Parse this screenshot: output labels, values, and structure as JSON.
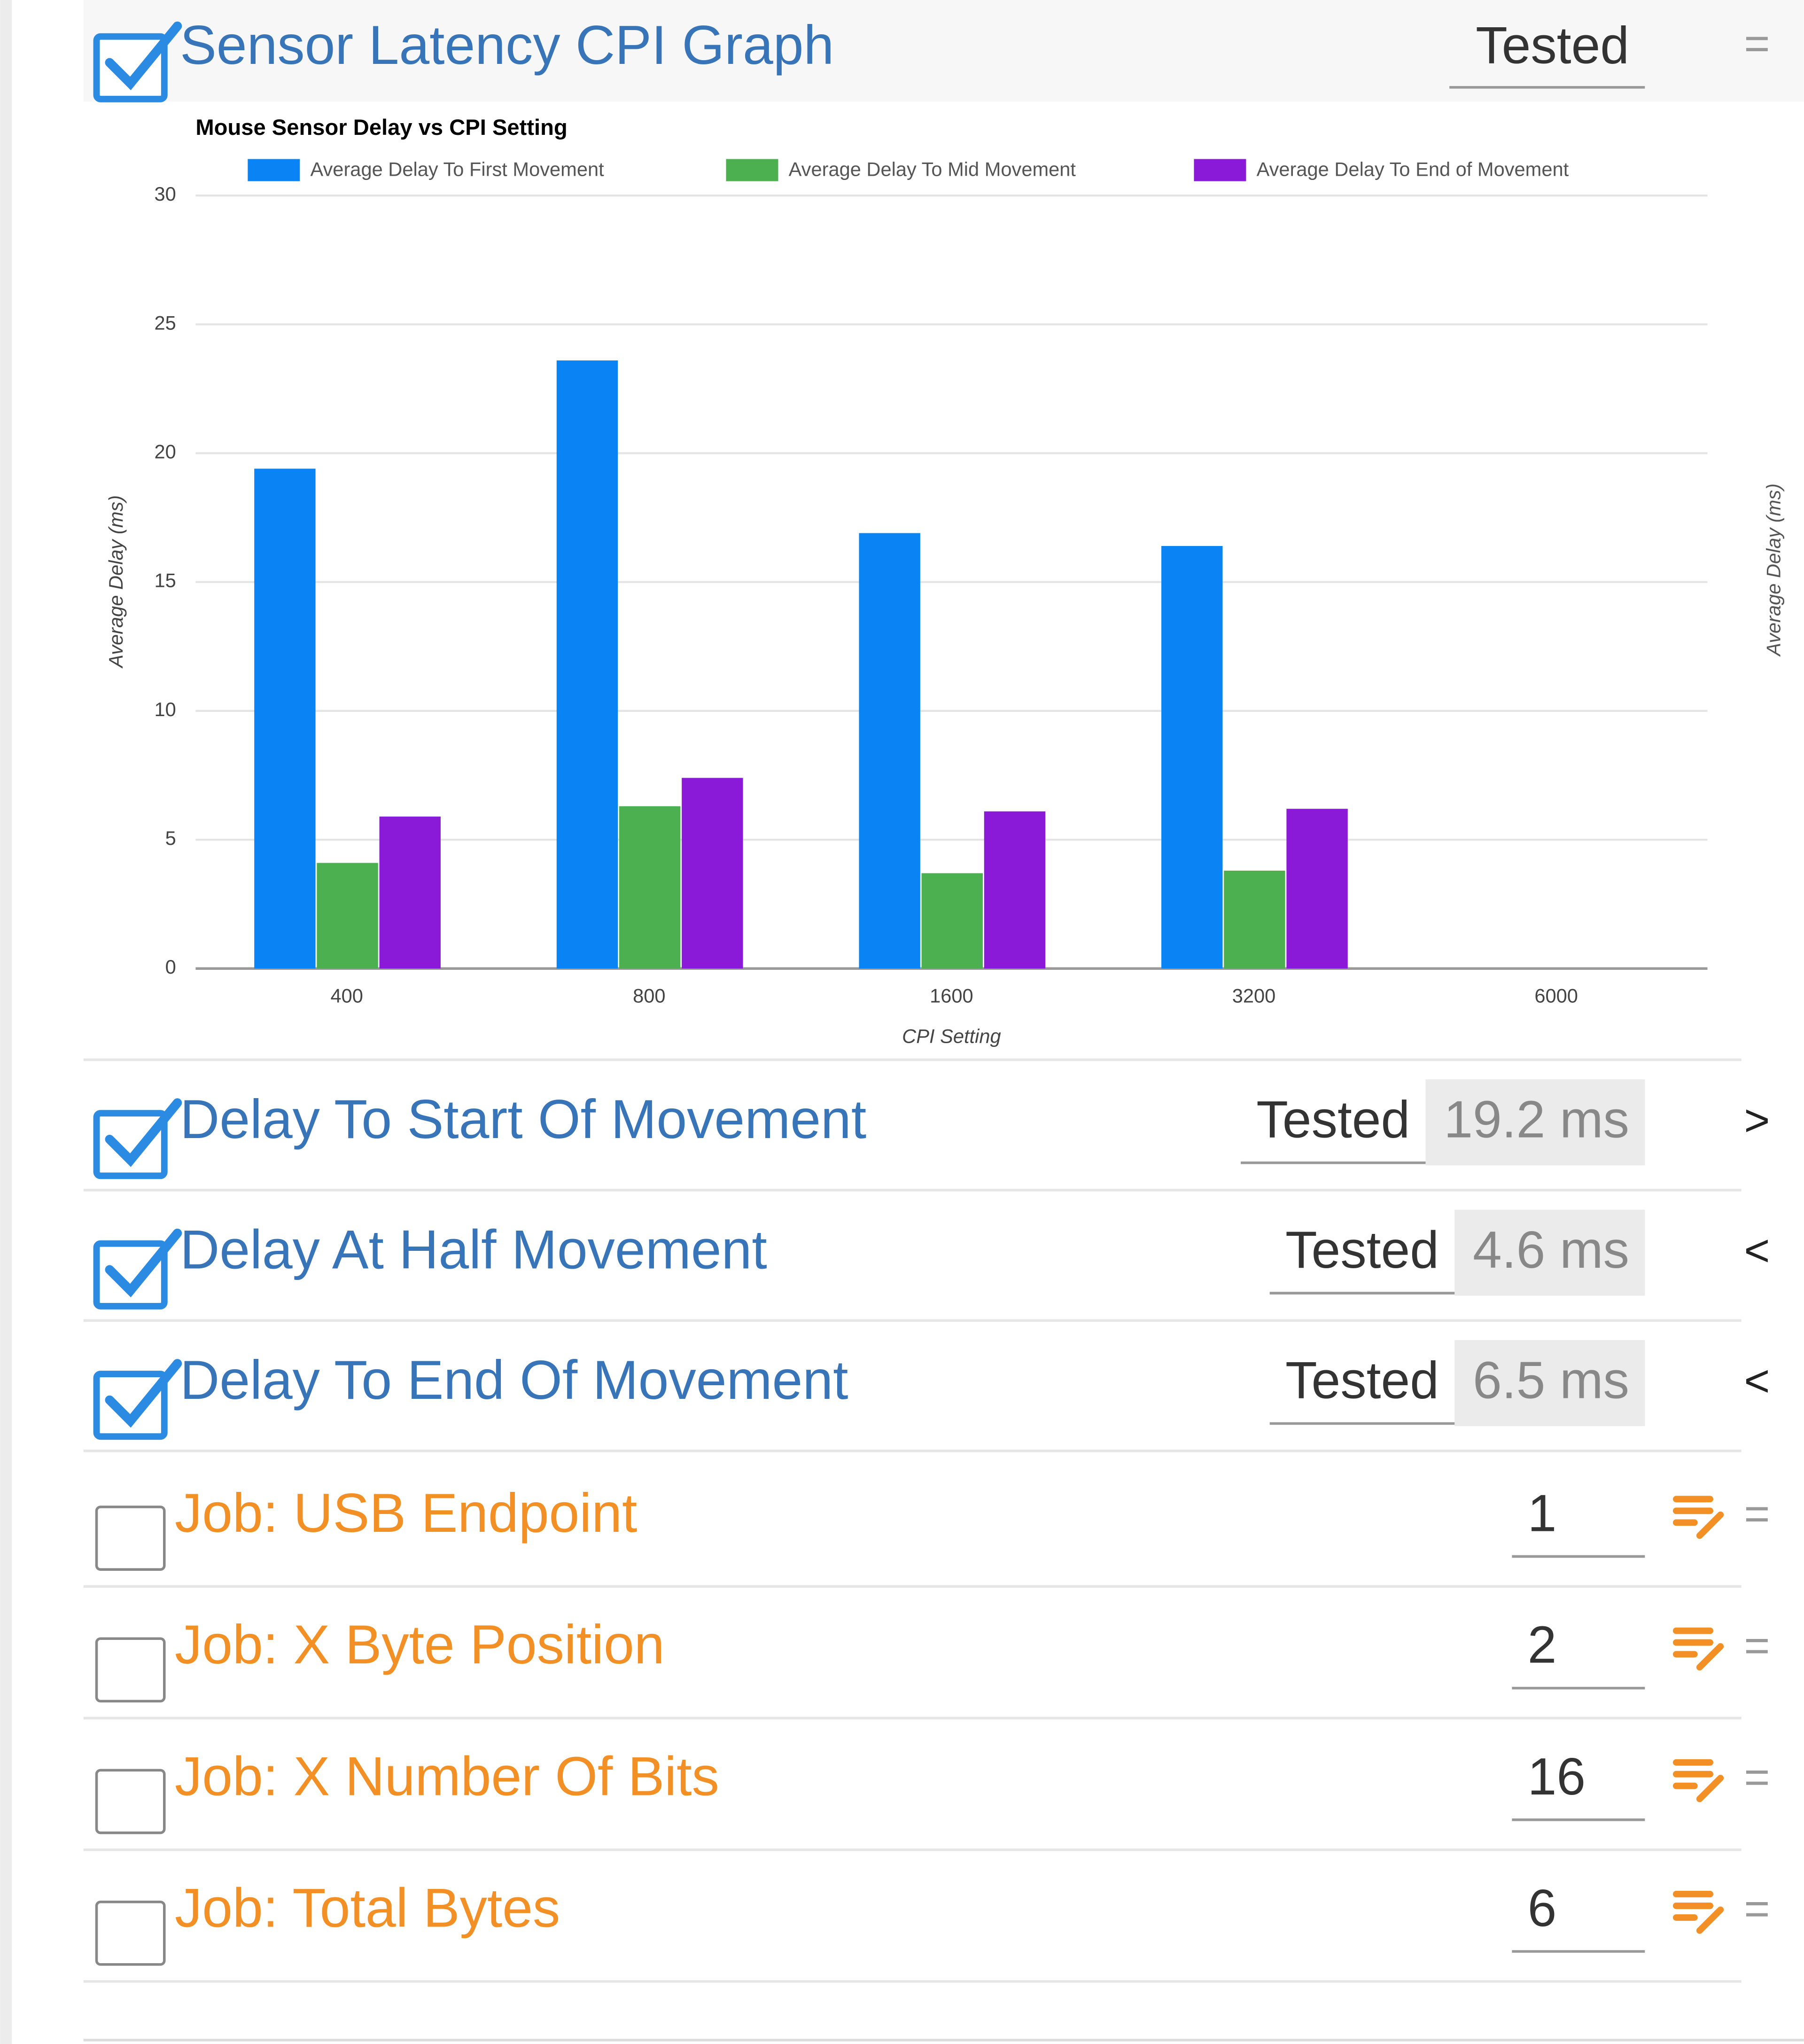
{
  "header": {
    "title": "Sensor Latency CPI Graph",
    "status": "Tested",
    "handle": "="
  },
  "chart_data": {
    "type": "bar",
    "title": "Mouse Sensor Delay vs CPI Setting",
    "x_label": "CPI Setting",
    "y_label": "Average Delay (ms)",
    "categories": [
      "400",
      "800",
      "1600",
      "3200",
      "6000"
    ],
    "series": [
      {
        "name": "Average Delay To First Movement",
        "color": "#0a84f5",
        "values": [
          19.4,
          23.6,
          16.9,
          16.4,
          null
        ]
      },
      {
        "name": "Average Delay To Mid Movement",
        "color": "#4caf50",
        "values": [
          4.1,
          6.3,
          3.7,
          3.8,
          null
        ]
      },
      {
        "name": "Average Delay To End of Movement",
        "color": "#8a1ad8",
        "values": [
          5.9,
          7.4,
          6.1,
          6.2,
          null
        ]
      }
    ],
    "ylim": [
      0,
      30
    ],
    "yticks": [
      0,
      5,
      10,
      15,
      20,
      25,
      30
    ],
    "grid": true
  },
  "side_label": "Average Delay (ms)",
  "rows": [
    {
      "label": "Delay To Start Of Movement",
      "status": "Tested",
      "value": "19.2 ms",
      "handle": ">"
    },
    {
      "label": "Delay At Half Movement",
      "status": "Tested",
      "value": "4.6 ms",
      "handle": "<"
    },
    {
      "label": "Delay To End Of Movement",
      "status": "Tested",
      "value": "6.5 ms",
      "handle": "<"
    }
  ],
  "jobs": [
    {
      "label": "Job: USB Endpoint",
      "value": "1",
      "handle": "="
    },
    {
      "label": "Job: X Byte Position",
      "value": "2",
      "handle": "="
    },
    {
      "label": "Job: X Number Of Bits",
      "value": "16",
      "handle": "="
    },
    {
      "label": "Job: Total Bytes",
      "value": "6",
      "handle": "="
    }
  ]
}
